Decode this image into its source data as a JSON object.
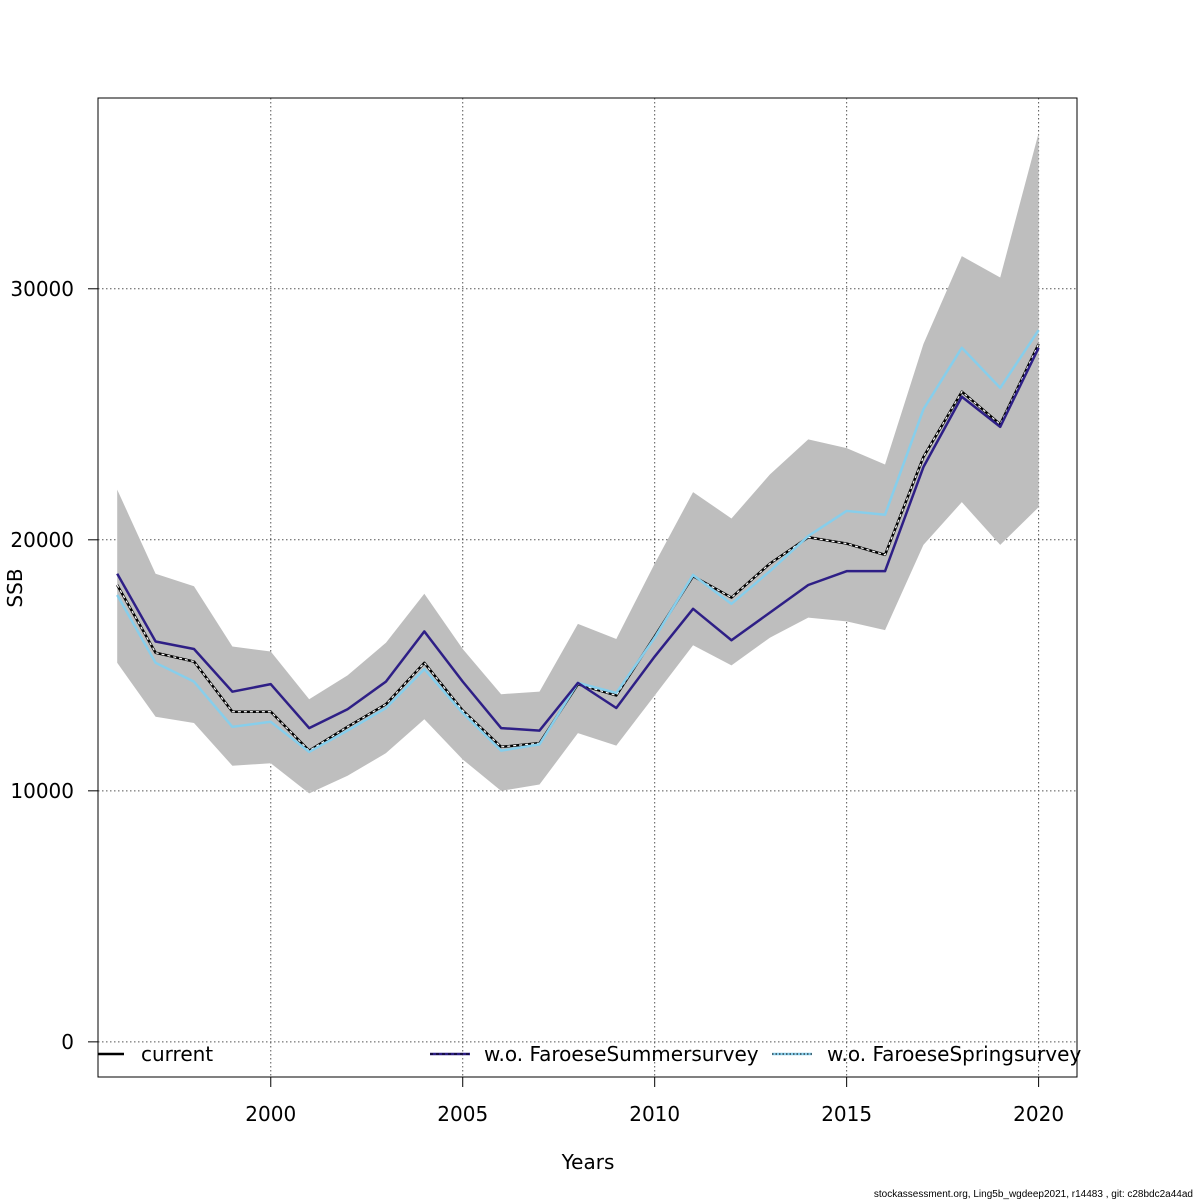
{
  "chart_data": {
    "type": "line",
    "xlabel": "Years",
    "ylabel": "SSB",
    "xlim": [
      1995.5,
      2021.0
    ],
    "ylim": [
      -1400,
      37600
    ],
    "x_ticks": [
      2000,
      2005,
      2010,
      2015,
      2020
    ],
    "x_tick_labels": [
      "2000",
      "2005",
      "2010",
      "2015",
      "2020"
    ],
    "y_ticks": [
      0,
      10000,
      20000,
      30000
    ],
    "y_tick_labels": [
      "0",
      "10000",
      "20000",
      "30000"
    ],
    "grid": true,
    "legend_position": "bottom",
    "x": [
      1996,
      1997,
      1998,
      1999,
      2000,
      2001,
      2002,
      2003,
      2004,
      2005,
      2006,
      2007,
      2008,
      2009,
      2010,
      2011,
      2012,
      2013,
      2014,
      2015,
      2016,
      2017,
      2018,
      2019,
      2020
    ],
    "band": {
      "color": "#bebebe",
      "lower": [
        15100,
        12950,
        12700,
        11000,
        11100,
        9900,
        10600,
        11500,
        12850,
        11250,
        10000,
        10250,
        12300,
        11800,
        13800,
        15800,
        15000,
        16100,
        16900,
        16750,
        16400,
        19800,
        21500,
        19800,
        21300
      ],
      "upper": [
        22000,
        18650,
        18150,
        15750,
        15550,
        13650,
        14600,
        15900,
        17850,
        15650,
        13850,
        13950,
        16650,
        16050,
        19050,
        21900,
        20850,
        22600,
        24000,
        23650,
        23000,
        27800,
        31300,
        30450,
        36200
      ]
    },
    "series": [
      {
        "name": "current",
        "color": "#000000",
        "style": "solid",
        "values": [
          18200,
          15500,
          15150,
          13150,
          13150,
          11600,
          12550,
          13450,
          15100,
          13200,
          11750,
          11900,
          14250,
          13800,
          16150,
          18550,
          17700,
          19050,
          20100,
          19850,
          19400,
          23300,
          25900,
          24600,
          27800
        ]
      },
      {
        "name": "w.o. FaroeseSummersurvey",
        "color": "#2e1f86",
        "style": "dashed",
        "values": [
          18650,
          15950,
          15650,
          13950,
          14250,
          12500,
          13250,
          14350,
          16350,
          14350,
          12500,
          12400,
          14300,
          13300,
          15350,
          17250,
          16000,
          17100,
          18200,
          18750,
          18750,
          22900,
          25700,
          24500,
          27650
        ]
      },
      {
        "name": "w.o. FaroeseSpringsurvey",
        "color": "#87ceeb",
        "style": "dotted",
        "values": [
          17800,
          15100,
          14350,
          12550,
          12750,
          11550,
          12400,
          13300,
          14850,
          13100,
          11600,
          11850,
          14300,
          13900,
          16100,
          18600,
          17450,
          18750,
          20150,
          21150,
          21000,
          25200,
          27650,
          26050,
          28350
        ]
      }
    ],
    "footer": "stockassessment.org, Ling5b_wgdeep2021, r14483 , git: c28bdc2a44ad"
  }
}
